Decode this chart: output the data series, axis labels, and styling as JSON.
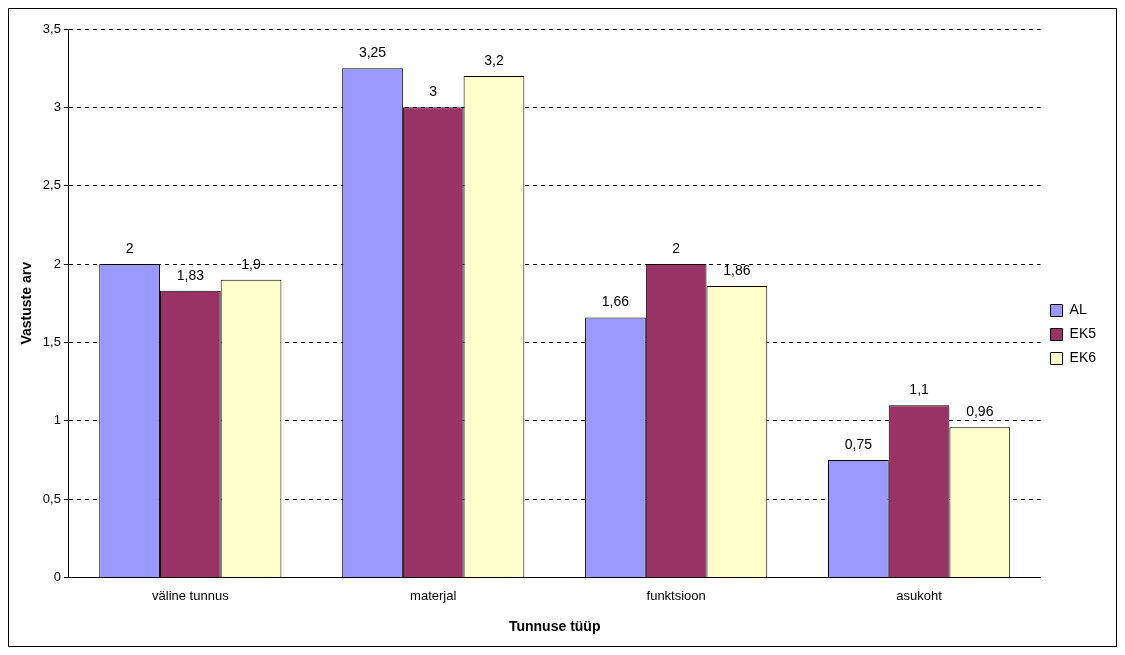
{
  "chart_data": {
    "type": "bar",
    "xlabel": "Tunnuse tüüp",
    "ylabel": "Vastuste arv",
    "categories": [
      "väline tunnus",
      "materjal",
      "funktsioon",
      "asukoht"
    ],
    "series": [
      {
        "name": "AL",
        "color": "#9999ff",
        "values": [
          2,
          3.25,
          1.66,
          0.75
        ],
        "value_labels": [
          "2",
          "3,25",
          "1,66",
          "0,75"
        ]
      },
      {
        "name": "EK5",
        "color": "#993366",
        "values": [
          1.83,
          3,
          2,
          1.1
        ],
        "value_labels": [
          "1,83",
          "3",
          "2",
          "1,1"
        ]
      },
      {
        "name": "EK6",
        "color": "#ffffcc",
        "values": [
          1.9,
          3.2,
          1.86,
          0.96
        ],
        "value_labels": [
          "1,9",
          "3,2",
          "1,86",
          "0,96"
        ]
      }
    ],
    "ylim": [
      0,
      3.5
    ],
    "yticks": [
      0,
      {
        "value": 0.5,
        "label": "0,5"
      },
      1,
      {
        "value": 1.5,
        "label": "1,5"
      },
      2,
      {
        "value": 2.5,
        "label": "2,5"
      },
      3,
      {
        "value": 3.5,
        "label": "3,5"
      }
    ],
    "grid": "y",
    "legend": "right"
  }
}
